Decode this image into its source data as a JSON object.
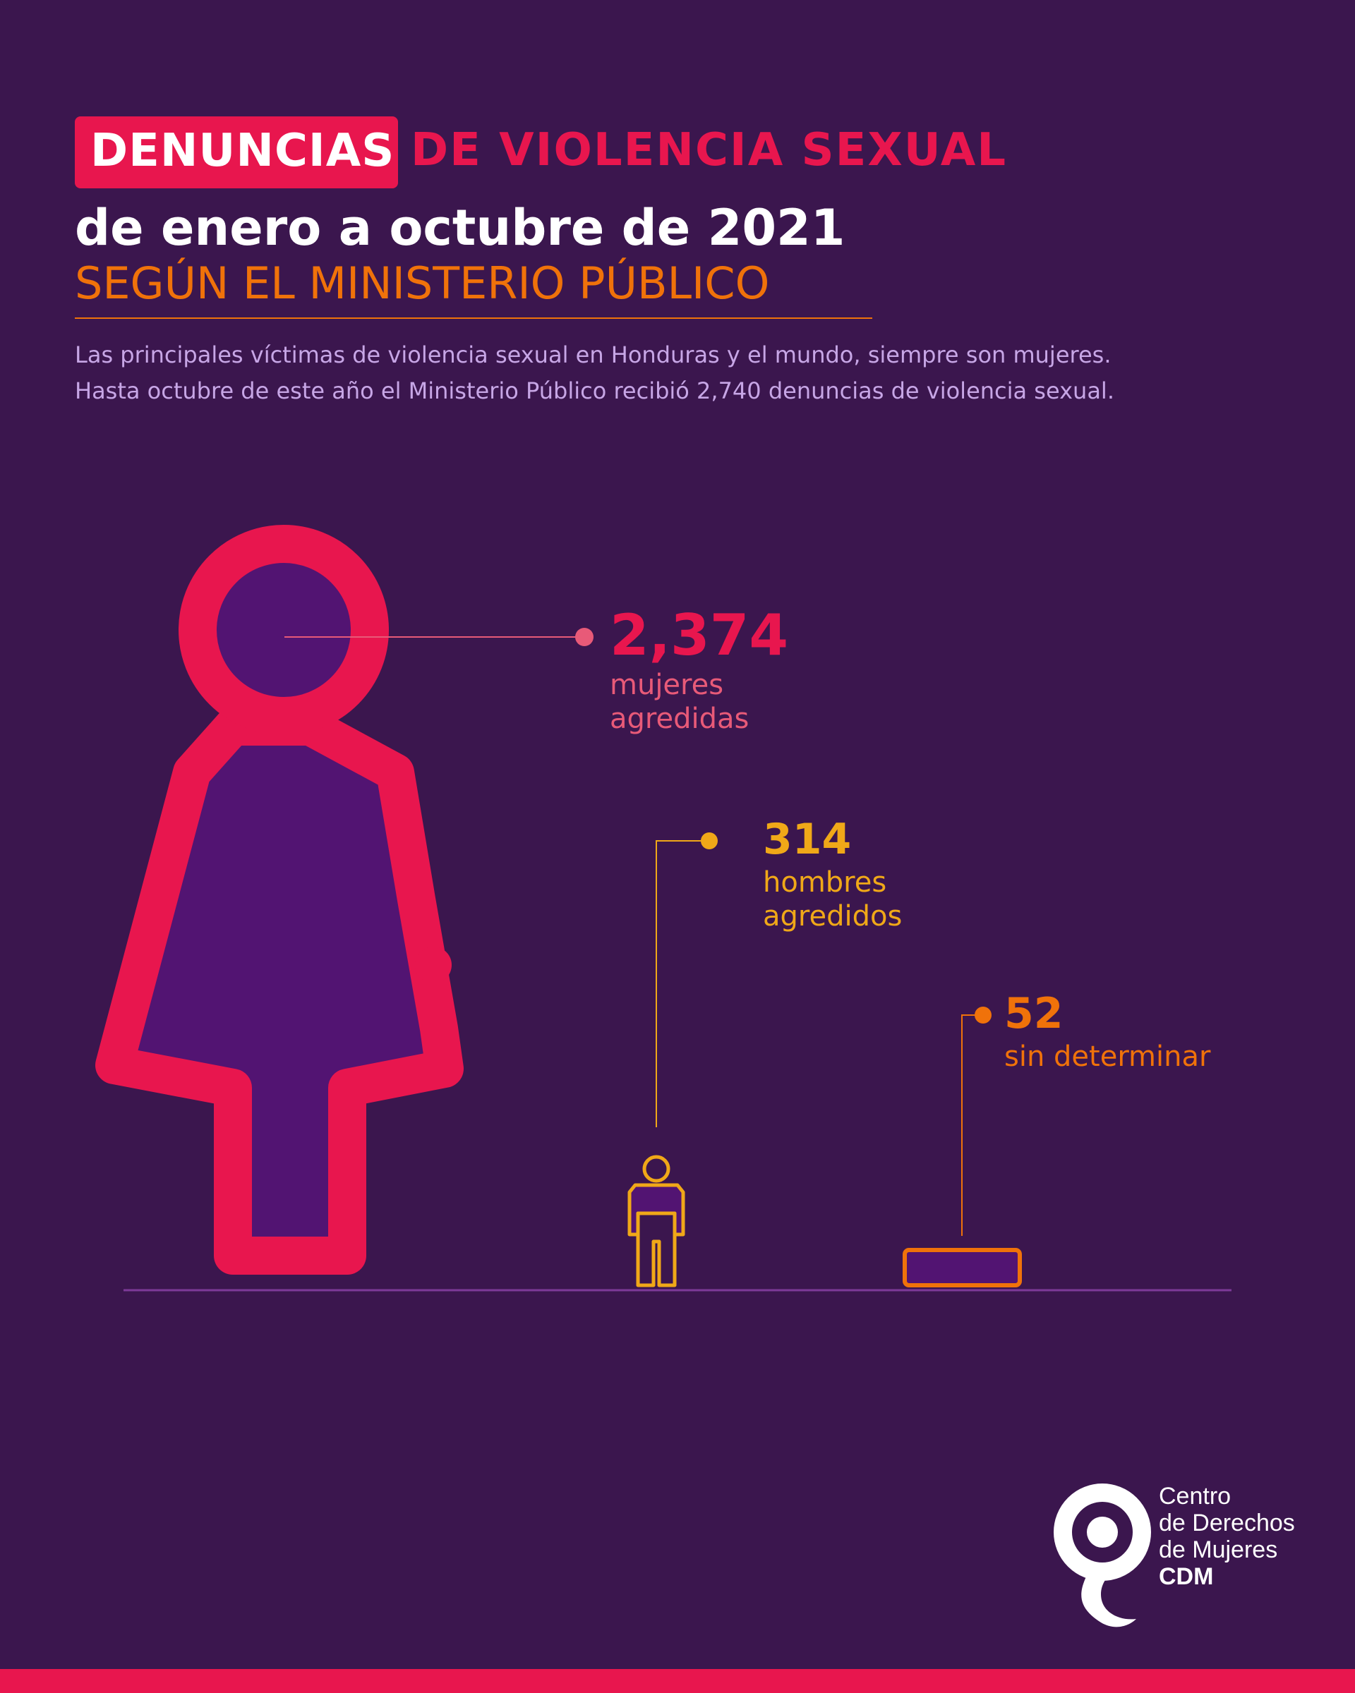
{
  "header": {
    "title_highlight": "DENUNCIAS",
    "title_rest": "DE VIOLENCIA SEXUAL",
    "subtitle": "de enero a octubre de 2021",
    "source": "SEGÚN EL MINISTERIO PÚBLICO"
  },
  "description": {
    "line1": "Las principales víctimas de violencia sexual en Honduras y el mundo, siempre son mujeres.",
    "line2": "Hasta octubre de este año el Ministerio Público recibió 2,740 denuncias de violencia sexual."
  },
  "chart_data": {
    "type": "bar",
    "total": 2740,
    "categories": [
      "mujeres agredidas",
      "hombres agredidos",
      "sin determinar"
    ],
    "values": [
      2374,
      314,
      52
    ],
    "value_labels": [
      "2,374",
      "314",
      "52"
    ],
    "label_lines": [
      [
        "mujeres",
        "agredidas"
      ],
      [
        "hombres",
        "agredidos"
      ],
      [
        "sin determinar"
      ]
    ],
    "colors": [
      "#e8164e",
      "#f0a818",
      "#f0720a"
    ],
    "fill_color": "#521472",
    "icons": [
      "woman-icon",
      "man-icon",
      "bar-block"
    ]
  },
  "logo": {
    "line1": "Centro",
    "line2": "de Derechos",
    "line3": "de Mujeres",
    "acronym": "CDM"
  }
}
